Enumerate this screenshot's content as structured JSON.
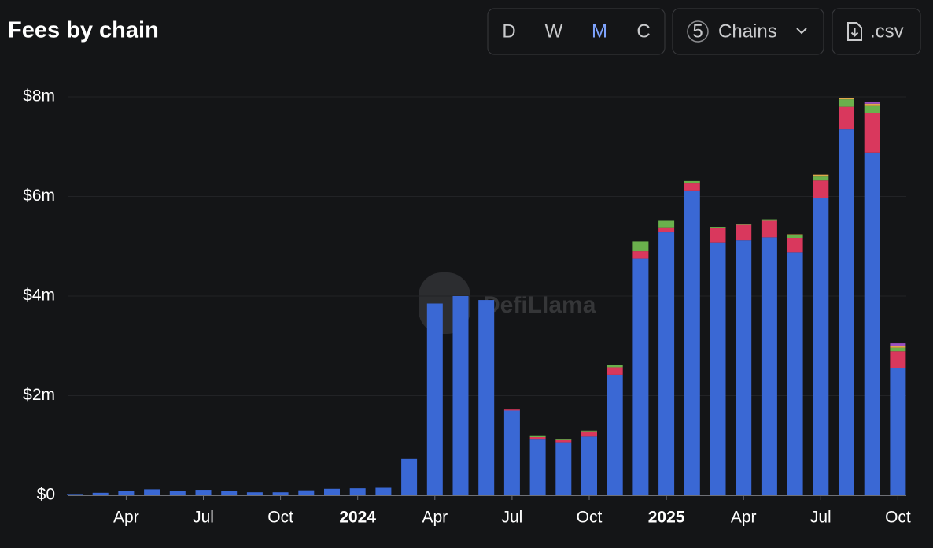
{
  "chart_data": {
    "type": "stacked_bar",
    "title": "Fees by chain",
    "watermark": "DefiLlama",
    "controls": {
      "intervals": [
        "D",
        "W",
        "M",
        "C"
      ],
      "active_interval": "M",
      "chain_count": "5",
      "chain_label": "Chains",
      "export_label": ".csv"
    },
    "categories": [
      null,
      null,
      "Apr",
      null,
      null,
      "Jul",
      null,
      null,
      "Oct",
      null,
      null,
      "2024",
      null,
      null,
      "Apr",
      null,
      null,
      "Jul",
      null,
      null,
      "Oct",
      null,
      null,
      "2025",
      null,
      null,
      "Apr",
      null,
      null,
      "Jul",
      null,
      null,
      "Oct"
    ],
    "series": [
      {
        "color": "#3a68d4",
        "values": [
          10000,
          50000,
          90000,
          120000,
          80000,
          110000,
          80000,
          60000,
          60000,
          100000,
          130000,
          140000,
          150000,
          730000,
          3850000,
          4000000,
          3920000,
          1700000,
          1120000,
          1050000,
          1180000,
          2420000,
          4750000,
          5280000,
          6120000,
          5080000,
          5120000,
          5180000,
          4880000,
          5970000,
          7350000,
          6880000,
          2560000
        ]
      },
      {
        "color": "#d9385d",
        "values": [
          0,
          0,
          0,
          0,
          0,
          0,
          0,
          0,
          0,
          0,
          0,
          0,
          0,
          0,
          0,
          0,
          0,
          20000,
          50000,
          60000,
          90000,
          150000,
          150000,
          100000,
          140000,
          290000,
          310000,
          330000,
          290000,
          350000,
          450000,
          800000,
          330000
        ]
      },
      {
        "color": "#6ab04c",
        "values": [
          0,
          0,
          0,
          0,
          0,
          0,
          0,
          0,
          0,
          0,
          0,
          0,
          0,
          0,
          0,
          0,
          0,
          0,
          20000,
          20000,
          30000,
          50000,
          200000,
          130000,
          50000,
          20000,
          20000,
          30000,
          50000,
          80000,
          150000,
          150000,
          70000
        ]
      },
      {
        "color": "#e0a84b",
        "values": [
          0,
          0,
          0,
          0,
          0,
          0,
          0,
          0,
          0,
          0,
          0,
          0,
          0,
          0,
          0,
          0,
          0,
          0,
          0,
          0,
          0,
          0,
          0,
          0,
          0,
          0,
          0,
          0,
          20000,
          40000,
          30000,
          30000,
          30000
        ]
      },
      {
        "color": "#9b4fc0",
        "values": [
          0,
          0,
          0,
          0,
          0,
          0,
          0,
          0,
          0,
          0,
          0,
          0,
          0,
          0,
          0,
          0,
          0,
          0,
          0,
          0,
          0,
          0,
          0,
          0,
          0,
          0,
          0,
          0,
          0,
          0,
          0,
          30000,
          60000
        ]
      }
    ],
    "ylim": [
      0,
      8000000
    ],
    "yticks": [
      {
        "value": 0,
        "label": "$0"
      },
      {
        "value": 2000000,
        "label": "$2m"
      },
      {
        "value": 4000000,
        "label": "$4m"
      },
      {
        "value": 6000000,
        "label": "$6m"
      },
      {
        "value": 8000000,
        "label": "$8m"
      }
    ],
    "grid": true
  }
}
